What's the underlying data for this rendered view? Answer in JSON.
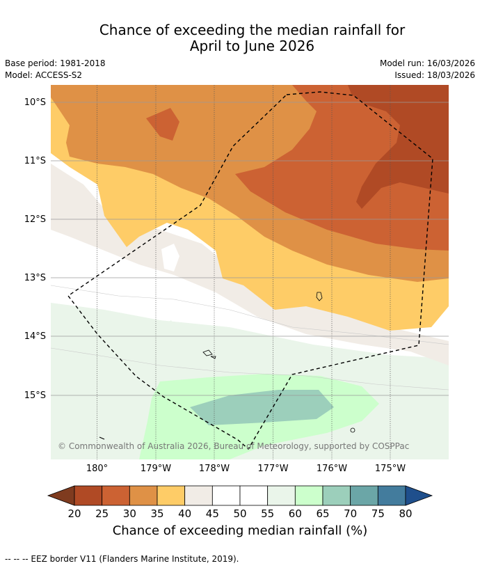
{
  "title_line1": "Chance of exceeding the median rainfall for",
  "title_line2": "April to June 2026",
  "meta": {
    "base_period": "Base period: 1981-2018",
    "model": "Model: ACCESS-S2",
    "model_run": "Model run: 16/03/2026",
    "issued": "Issued: 18/03/2026"
  },
  "map": {
    "copyright": "© Commonwealth of Australia 2026, Bureau of Meteorology, supported by COSPPac",
    "lat_labels": [
      "10°S",
      "11°S",
      "12°S",
      "13°S",
      "14°S",
      "15°S"
    ],
    "lon_labels": [
      "180°",
      "179°W",
      "178°W",
      "177°W",
      "176°W",
      "175°W"
    ]
  },
  "colorbar": {
    "title": "Chance of exceeding median rainfall (%)",
    "tick_labels": [
      "20",
      "25",
      "30",
      "35",
      "40",
      "45",
      "50",
      "55",
      "60",
      "65",
      "70",
      "75",
      "80"
    ],
    "colors": [
      "#7f3b1f",
      "#b04a25",
      "#cc6233",
      "#df9146",
      "#fecc67",
      "#f1ece6",
      "#ffffff",
      "#ffffff",
      "#eaf5ea",
      "#ccffcc",
      "#9ccfbb",
      "#6ba6a7",
      "#437c9d",
      "#1f4f8c"
    ]
  },
  "footnote": "--  --  -- EEZ border V11 (Flanders Marine Institute, 2019)."
}
